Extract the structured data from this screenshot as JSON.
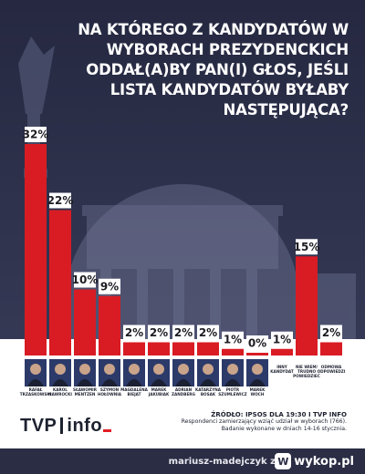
{
  "title": "NA KTÓREGO Z KANDYDATÓW W WYBORACH PREZYDENCKICH ODDAŁ(A)BY PAN(I) GŁOS, JEŚLI LISTA KANDYDATÓW BYŁABY NASTĘPUJĄCA?",
  "source": {
    "main": "ŹRÓDŁO: IPSOS DLA 19:30 I TVP INFO",
    "line1": "Respondenci zamierzający wziąć udział w wyborach (766).",
    "line2": "Badanie wykonane w dniach 14-16 stycznia."
  },
  "logo": {
    "left": "TVP",
    "right": "info"
  },
  "footer": {
    "user": "mariusz-madejczyk",
    "z": "z",
    "site": "wykop.pl"
  },
  "colors": {
    "bar": "#d91c24",
    "panel": "#ffffff",
    "background": "#22243a",
    "footer": "#2a2d44"
  },
  "chart_data": {
    "type": "bar",
    "title": "NA KTÓREGO Z KANDYDATÓW W WYBORACH PREZYDENCKICH ODDAŁ(A)BY PAN(I) GŁOS, JEŚLI LISTA KANDYDATÓW BYŁABY NASTĘPUJĄCA?",
    "categories": [
      "RAFAŁ TRZASKOWSKI",
      "KAROL NAWROCKI",
      "SŁAWOMIR MENTZEN",
      "SZYMON HOŁOWNIA",
      "MAGDALENA BIEJAT",
      "MAREK JAKUBIAK",
      "ADRIAN ZANDBERG",
      "KATARZYNA BOSAK",
      "PIOTR SZUMLEWICZ",
      "MAREK WOCH",
      "INNY KANDYDAT",
      "NIE WIEM/ TRUDNO POWIEDZIEĆ",
      "ODMOWA ODPOWIEDZI"
    ],
    "name_lines": [
      [
        "RAFAŁ",
        "TRZASKOWSKI"
      ],
      [
        "KAROL",
        "NAWROCKI"
      ],
      [
        "SŁAWOMIR",
        "MENTZEN"
      ],
      [
        "SZYMON",
        "HOŁOWNIA"
      ],
      [
        "MAGDALENA",
        "BIEJAT"
      ],
      [
        "MAREK",
        "JAKUBIAK"
      ],
      [
        "ADRIAN",
        "ZANDBERG"
      ],
      [
        "KATARZYNA",
        "BOSAK"
      ],
      [
        "PIOTR",
        "SZUMLEWICZ"
      ],
      [
        "MAREK",
        "WOCH"
      ],
      [
        "INNY",
        "KANDYDAT"
      ],
      [
        "NIE WIEM/",
        "TRUDNO",
        "POWIEDZIEĆ"
      ],
      [
        "ODMOWA",
        "ODPOWIEDZI"
      ]
    ],
    "values": [
      32,
      22,
      10,
      9,
      2,
      2,
      2,
      2,
      1,
      0,
      1,
      15,
      2
    ],
    "labels": [
      "32%",
      "22%",
      "10%",
      "9%",
      "2%",
      "2%",
      "2%",
      "2%",
      "1%",
      "0%",
      "1%",
      "15%",
      "2%"
    ],
    "has_photo": [
      true,
      true,
      true,
      true,
      true,
      true,
      true,
      true,
      true,
      true,
      false,
      false,
      false
    ],
    "ylim": [
      0,
      32
    ],
    "grid": false,
    "xlabel": "",
    "ylabel": ""
  }
}
